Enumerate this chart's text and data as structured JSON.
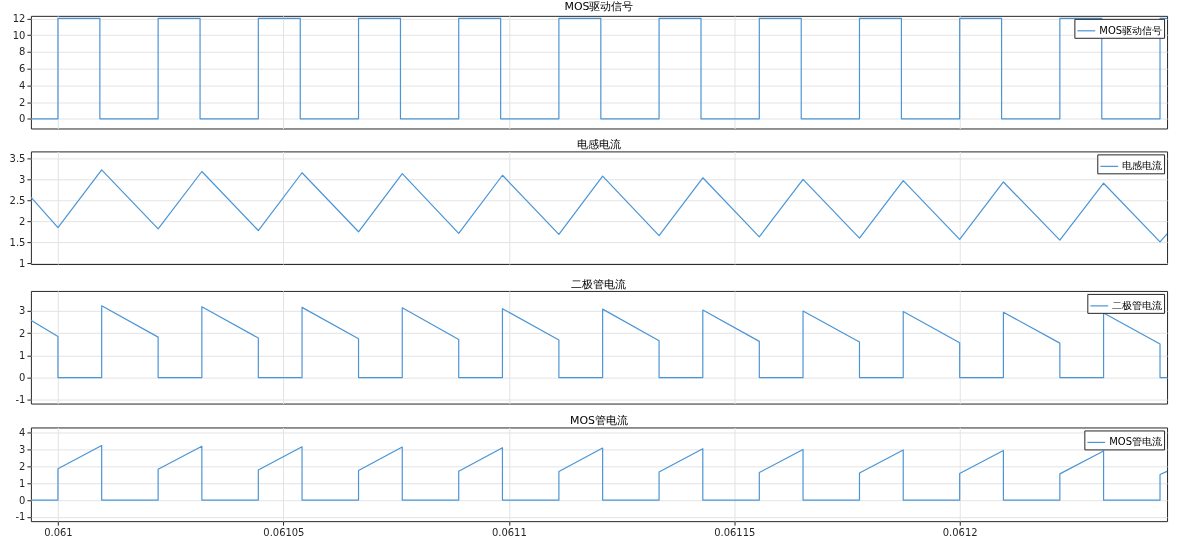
{
  "chart_data": [
    {
      "type": "line",
      "title": "MOS驱动信号",
      "x": [
        0.060994,
        0.061,
        0.061,
        0.0610093,
        0.0610093,
        0.06102222,
        0.06102222,
        0.06103152,
        0.06103152,
        0.06104444,
        0.06104444,
        0.06105374,
        0.06105374,
        0.06106667,
        0.06106667,
        0.06107597,
        0.06107597,
        0.06108889,
        0.06108889,
        0.06109819,
        0.06109819,
        0.06111111,
        0.06111111,
        0.06112041,
        0.06112041,
        0.06113333,
        0.06113333,
        0.06114263,
        0.06114263,
        0.06115556,
        0.06115556,
        0.06116486,
        0.06116486,
        0.06117778,
        0.06117778,
        0.06118708,
        0.06118708,
        0.0612,
        0.0612,
        0.0612093,
        0.0612093,
        0.06122222,
        0.06122222,
        0.06123152,
        0.06123152,
        0.06124444,
        0.06124444,
        0.061246
      ],
      "series": [
        {
          "name": "MOS驱动信号",
          "color": "#4a95d6",
          "values": [
            0,
            0,
            12,
            12,
            0,
            0,
            12,
            12,
            0,
            0,
            12,
            12,
            0,
            0,
            12,
            12,
            0,
            0,
            12,
            12,
            0,
            0,
            12,
            12,
            0,
            0,
            12,
            12,
            0,
            0,
            12,
            12,
            0,
            0,
            12,
            12,
            0,
            0,
            12,
            12,
            0,
            0,
            12,
            12,
            0,
            0,
            12,
            12
          ]
        }
      ],
      "xlim": [
        0.060994,
        0.061246
      ],
      "xticks": [
        0.061,
        0.06105,
        0.0611,
        0.06115,
        0.0612
      ],
      "ylim": [
        -1.15,
        12.3
      ],
      "yticks": [
        0,
        2,
        4,
        6,
        8,
        10,
        12
      ],
      "grid": true,
      "legend": "top right",
      "tick_labels": "y"
    },
    {
      "type": "line",
      "title": "电感电流",
      "x": [
        0.060994,
        0.061,
        0.0610097,
        0.06102222,
        0.06103192,
        0.06104444,
        0.06105414,
        0.06106667,
        0.06107637,
        0.06108889,
        0.06109859,
        0.06111111,
        0.06112081,
        0.06113333,
        0.06114303,
        0.06115556,
        0.06116526,
        0.06117778,
        0.06118748,
        0.0612,
        0.0612097,
        0.06122222,
        0.06123192,
        0.06124444,
        0.061246
      ],
      "series": [
        {
          "name": "电感电流",
          "color": "#4a95d6",
          "values": [
            2.58,
            1.85,
            3.23,
            1.82,
            3.19,
            1.78,
            3.16,
            1.75,
            3.14,
            1.71,
            3.1,
            1.69,
            3.08,
            1.66,
            3.04,
            1.63,
            3.0,
            1.6,
            2.97,
            1.57,
            2.94,
            1.55,
            2.91,
            1.51,
            1.7
          ]
        }
      ],
      "xlim": [
        0.060994,
        0.061246
      ],
      "xticks": [
        0.061,
        0.06105,
        0.0611,
        0.06115,
        0.0612
      ],
      "ylim": [
        0.98,
        3.67
      ],
      "yticks": [
        1,
        1.5,
        2,
        2.5,
        3,
        3.5
      ],
      "grid": true,
      "legend": "top right",
      "tick_labels": "y"
    },
    {
      "type": "line",
      "title": "二极管电流",
      "x": [
        0.060994,
        0.061,
        0.061,
        0.0610097,
        0.0610097,
        0.06102222,
        0.06102222,
        0.06103192,
        0.06103192,
        0.06104444,
        0.06104444,
        0.06105414,
        0.06105414,
        0.06106667,
        0.06106667,
        0.06107637,
        0.06107637,
        0.06108889,
        0.06108889,
        0.06109859,
        0.06109859,
        0.06111111,
        0.06111111,
        0.06112081,
        0.06112081,
        0.06113333,
        0.06113333,
        0.06114303,
        0.06114303,
        0.06115556,
        0.06115556,
        0.06116526,
        0.06116526,
        0.06117778,
        0.06117778,
        0.06118748,
        0.06118748,
        0.0612,
        0.0612,
        0.0612097,
        0.0612097,
        0.06122222,
        0.06122222,
        0.06123192,
        0.06123192,
        0.06124444,
        0.06124444,
        0.061246
      ],
      "series": [
        {
          "name": "二极管电流",
          "color": "#4a95d6",
          "values": [
            2.58,
            1.85,
            0,
            0,
            3.23,
            1.82,
            0,
            0,
            3.19,
            1.78,
            0,
            0,
            3.16,
            1.75,
            0,
            0,
            3.14,
            1.71,
            0,
            0,
            3.1,
            1.69,
            0,
            0,
            3.08,
            1.66,
            0,
            0,
            3.04,
            1.63,
            0,
            0,
            3.0,
            1.6,
            0,
            0,
            2.97,
            1.57,
            0,
            0,
            2.94,
            1.55,
            0,
            0,
            2.91,
            1.51,
            0,
            0
          ]
        }
      ],
      "xlim": [
        0.060994,
        0.061246
      ],
      "xticks": [
        0.061,
        0.06105,
        0.0611,
        0.06115,
        0.0612
      ],
      "ylim": [
        -1.17,
        3.9
      ],
      "yticks": [
        -1,
        0,
        1,
        2,
        3
      ],
      "grid": true,
      "legend": "top right",
      "tick_labels": "y"
    },
    {
      "type": "line",
      "title": "MOS管电流",
      "x": [
        0.060994,
        0.061,
        0.061,
        0.0610097,
        0.0610097,
        0.06102222,
        0.06102222,
        0.06103192,
        0.06103192,
        0.06104444,
        0.06104444,
        0.06105414,
        0.06105414,
        0.06106667,
        0.06106667,
        0.06107637,
        0.06107637,
        0.06108889,
        0.06108889,
        0.06109859,
        0.06109859,
        0.06111111,
        0.06111111,
        0.06112081,
        0.06112081,
        0.06113333,
        0.06113333,
        0.06114303,
        0.06114303,
        0.06115556,
        0.06115556,
        0.06116526,
        0.06116526,
        0.06117778,
        0.06117778,
        0.06118748,
        0.06118748,
        0.0612,
        0.0612,
        0.0612097,
        0.0612097,
        0.06122222,
        0.06122222,
        0.06123192,
        0.06123192,
        0.06124444,
        0.06124444,
        0.061246
      ],
      "series": [
        {
          "name": "MOS管电流",
          "color": "#4a95d6",
          "values": [
            0,
            0,
            1.85,
            3.23,
            0,
            0,
            1.82,
            3.19,
            0,
            0,
            1.78,
            3.16,
            0,
            0,
            1.75,
            3.14,
            0,
            0,
            1.71,
            3.1,
            0,
            0,
            1.69,
            3.08,
            0,
            0,
            1.66,
            3.04,
            0,
            0,
            1.63,
            3.0,
            0,
            0,
            1.6,
            2.97,
            0,
            0,
            1.57,
            2.94,
            0,
            0,
            1.55,
            2.91,
            0,
            0,
            1.51,
            1.7
          ]
        }
      ],
      "xlim": [
        0.060994,
        0.061246
      ],
      "xticks": [
        0.061,
        0.06105,
        0.0611,
        0.06115,
        0.0612
      ],
      "ylim": [
        -1.25,
        4.3
      ],
      "yticks": [
        -1,
        0,
        1,
        2,
        3,
        4
      ],
      "grid": true,
      "legend": "top right"
    }
  ]
}
